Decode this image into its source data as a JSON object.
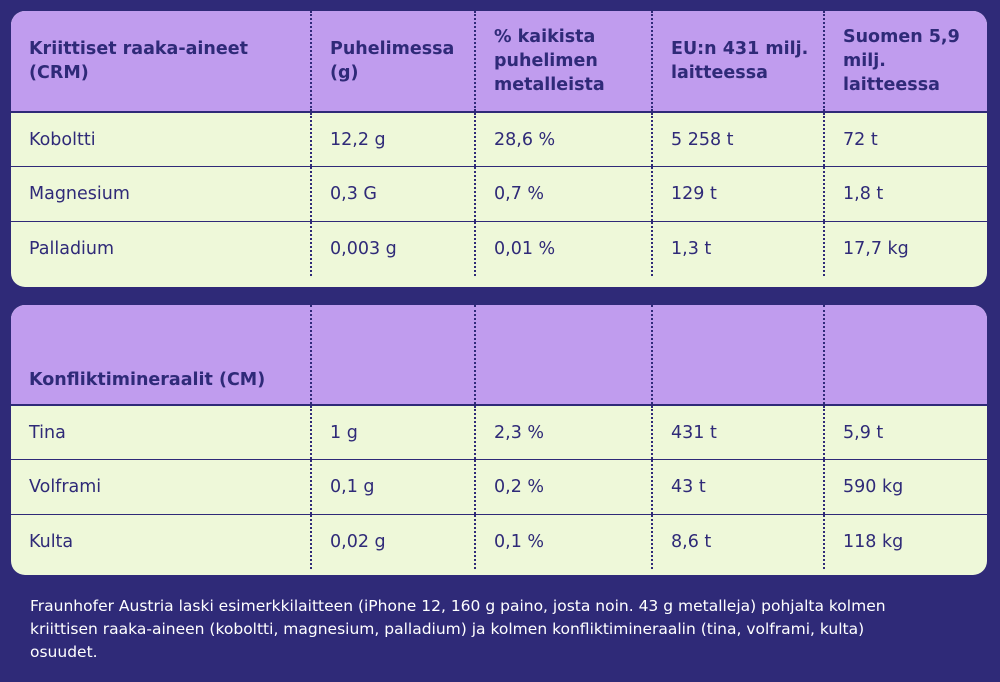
{
  "crm_table": {
    "headers": [
      "Kriittiset raaka-aineet (CRM)",
      "Puhelimessa (g)",
      "% kaikista puhelimen metalleista",
      "EU:n 431 milj. laitteessa",
      "Suomen 5,9 milj. laitteessa"
    ],
    "rows": [
      [
        "Koboltti",
        "12,2 g",
        "28,6 %",
        "5 258 t",
        "72 t"
      ],
      [
        "Magnesium",
        "0,3 G",
        "0,7 %",
        "129 t",
        "1,8 t"
      ],
      [
        "Palladium",
        "0,003 g",
        "0,01 %",
        "1,3 t",
        "17,7 kg"
      ]
    ]
  },
  "cm_table": {
    "headers": [
      "Konfliktimineraalit (CM)",
      "",
      "",
      "",
      ""
    ],
    "rows": [
      [
        "Tina",
        "1 g",
        "2,3 %",
        "431 t",
        "5,9 t"
      ],
      [
        "Volframi",
        "0,1 g",
        "0,2 %",
        "43 t",
        "590 kg"
      ],
      [
        "Kulta",
        "0,02 g",
        "0,1 %",
        "8,6 t",
        "118 kg"
      ]
    ]
  },
  "footnote": "Fraunhofer Austria laski esimerkkilaitteen (iPhone 12, 160 g paino, josta noin. 43 g metalleja) pohjalta kolmen kriittisen raaka-aineen (koboltti, magnesium, palladium) ja kolmen konfliktimineraalin (tina, volframi, kulta) osuudet.",
  "colors": {
    "background": "#2f2a78",
    "header": "#c09cee",
    "row": "#eef8d9",
    "text": "#2f2a78"
  }
}
